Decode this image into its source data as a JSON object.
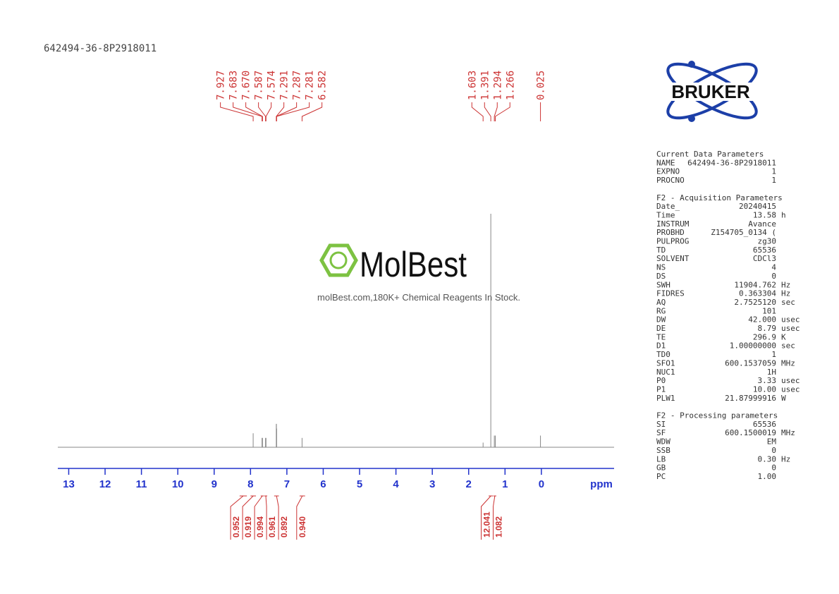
{
  "chart_data": {
    "type": "nmr",
    "title": "642494-36-8P2918011",
    "x_label": "ppm",
    "xlim": [
      13.3,
      -2.0
    ],
    "xticks": [
      13,
      12,
      11,
      10,
      9,
      8,
      7,
      6,
      5,
      4,
      3,
      2,
      1,
      0
    ],
    "line_color": "#888888",
    "axis_color": "#2233cc",
    "label_color": "#cc3333",
    "peaks": {
      "ppm": [
        7.927,
        7.683,
        7.67,
        7.587,
        7.574,
        7.291,
        7.287,
        7.281,
        6.582,
        1.603,
        1.391,
        1.294,
        1.266,
        0.025
      ],
      "value_labels": [
        "7.927",
        "7.683",
        "7.670",
        "7.587",
        "7.574",
        "7.291",
        "7.287",
        "7.281",
        "6.582",
        "1.603",
        "1.391",
        "1.294",
        "1.266",
        "0.025"
      ],
      "intensity": [
        6,
        4,
        4,
        4,
        4,
        10,
        10,
        8,
        4,
        2,
        100,
        5,
        5,
        5
      ]
    },
    "integrals": {
      "regions": [
        [
          8.3,
          8.1
        ],
        [
          8.0,
          7.85
        ],
        [
          7.72,
          7.63
        ],
        [
          7.62,
          7.54
        ],
        [
          7.35,
          7.22
        ],
        [
          6.65,
          6.5
        ],
        [
          1.45,
          1.33
        ],
        [
          1.32,
          1.24
        ]
      ],
      "values": [
        0.952,
        0.919,
        0.994,
        0.961,
        0.892,
        0.94,
        12.041,
        1.082
      ],
      "value_labels": [
        "0.952",
        "0.919",
        "0.994",
        "0.961",
        "0.892",
        "0.940",
        "12.041",
        "1.082"
      ]
    }
  },
  "watermark": {
    "brand": "MolBest",
    "tagline": "molBest.com,180K+ Chemical Reagents In Stock."
  },
  "logo": "BRUKER",
  "parameters": [
    {
      "title": "Current Data Parameters",
      "rows": [
        [
          "NAME",
          "642494-36-8P2918011"
        ],
        [
          "EXPNO",
          "1"
        ],
        [
          "PROCNO",
          "1"
        ]
      ]
    },
    {
      "title": "F2 - Acquisition Parameters",
      "rows": [
        [
          "Date_",
          "20240415"
        ],
        [
          "Time",
          "13.58",
          "h"
        ],
        [
          "INSTRUM",
          "Avance"
        ],
        [
          "PROBHD",
          "Z154705_0134 ("
        ],
        [
          "PULPROG",
          "zg30"
        ],
        [
          "TD",
          "65536"
        ],
        [
          "SOLVENT",
          "CDCl3"
        ],
        [
          "NS",
          "4"
        ],
        [
          "DS",
          "0"
        ],
        [
          "SWH",
          "11904.762",
          "Hz"
        ],
        [
          "FIDRES",
          "0.363304",
          "Hz"
        ],
        [
          "AQ",
          "2.7525120",
          "sec"
        ],
        [
          "RG",
          "101"
        ],
        [
          "DW",
          "42.000",
          "usec"
        ],
        [
          "DE",
          "8.79",
          "usec"
        ],
        [
          "TE",
          "296.9",
          "K"
        ],
        [
          "D1",
          "1.00000000",
          "sec"
        ],
        [
          "TD0",
          "1"
        ],
        [
          "SFO1",
          "600.1537059",
          "MHz"
        ],
        [
          "NUC1",
          "1H"
        ],
        [
          "P0",
          "3.33",
          "usec"
        ],
        [
          "P1",
          "10.00",
          "usec"
        ],
        [
          "PLW1",
          "21.87999916",
          "W"
        ]
      ]
    },
    {
      "title": "F2 - Processing parameters",
      "rows": [
        [
          "SI",
          "65536"
        ],
        [
          "SF",
          "600.1500019",
          "MHz"
        ],
        [
          "WDW",
          "EM"
        ],
        [
          "SSB",
          "0"
        ],
        [
          "LB",
          "0.30",
          "Hz"
        ],
        [
          "GB",
          "0"
        ],
        [
          "PC",
          "1.00"
        ]
      ]
    }
  ]
}
